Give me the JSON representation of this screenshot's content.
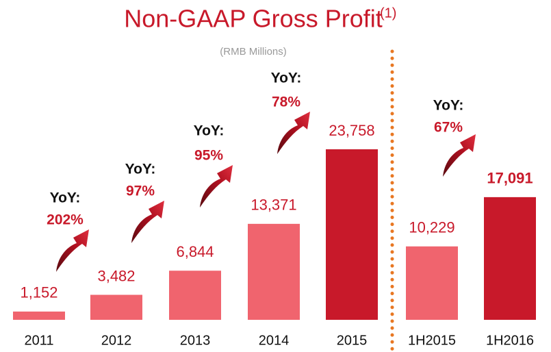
{
  "chart_data": {
    "type": "bar",
    "title": "Non-GAAP Gross Profit",
    "title_note": "(1)",
    "subtitle": "(RMB Millions)",
    "categories": [
      "2011",
      "2012",
      "2013",
      "2014",
      "2015",
      "1H2015",
      "1H2016"
    ],
    "values": [
      1152,
      3482,
      6844,
      13371,
      23758,
      10229,
      17091
    ],
    "value_labels": [
      "1,152",
      "3,482",
      "6,844",
      "13,371",
      "23,758",
      "10,229",
      "17,091"
    ],
    "colors": [
      "#f0646e",
      "#f0646e",
      "#f0646e",
      "#f0646e",
      "#c8192a",
      "#f0646e",
      "#c8192a"
    ],
    "annotations": [
      {
        "label": "YoY:",
        "text": "202%"
      },
      {
        "label": "YoY:",
        "text": "97%"
      },
      {
        "label": "YoY:",
        "text": "95%"
      },
      {
        "label": "YoY:",
        "text": "78%"
      },
      {
        "label": "YoY:",
        "text": "67%"
      }
    ]
  }
}
